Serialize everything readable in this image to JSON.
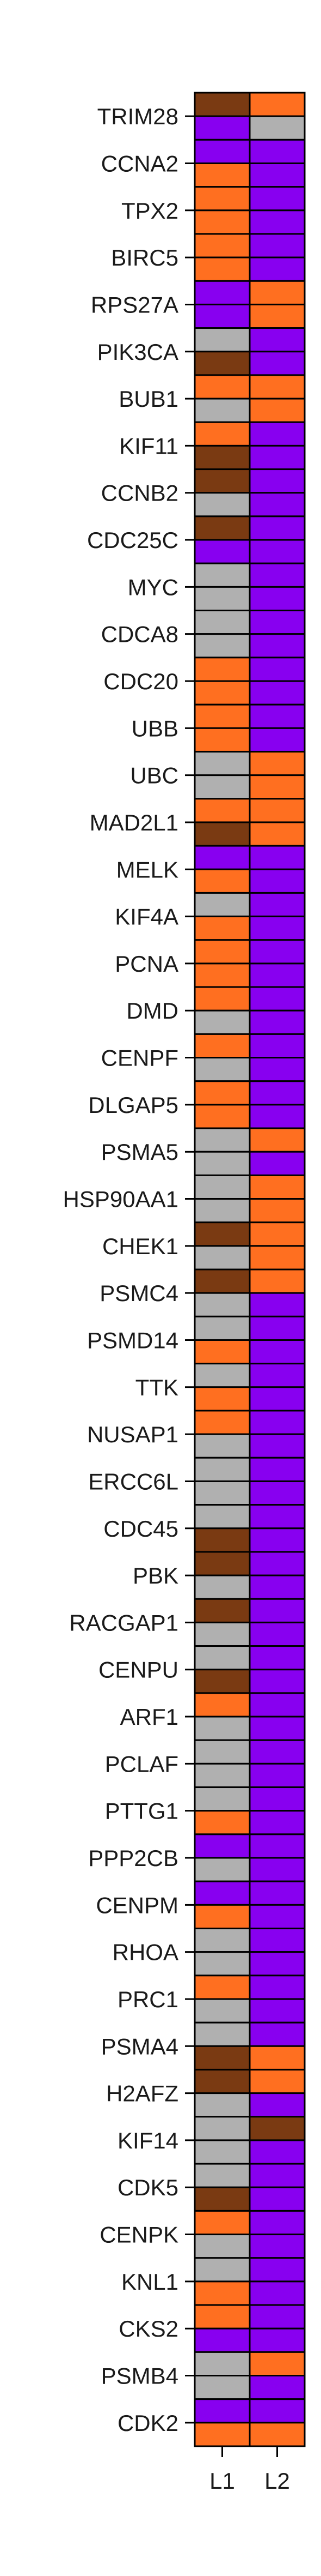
{
  "chart_data": {
    "type": "heatmap",
    "columns": [
      "L1",
      "L2"
    ],
    "rows": [
      "TRIM28",
      "CCNA2",
      "TPX2",
      "BIRC5",
      "RPS27A",
      "PIK3CA",
      "BUB1",
      "KIF11",
      "CCNB2",
      "CDC25C",
      "MYC",
      "CDCA8",
      "CDC20",
      "UBB",
      "UBC",
      "MAD2L1",
      "MELK",
      "KIF4A",
      "PCNA",
      "DMD",
      "CENPF",
      "DLGAP5",
      "PSMA5",
      "HSP90AA1",
      "CHEK1",
      "PSMC4",
      "PSMD14",
      "TTK",
      "NUSAP1",
      "ERCC6L",
      "CDC45",
      "PBK",
      "RACGAP1",
      "CENPU",
      "ARF1",
      "PCLAF",
      "PTTG1",
      "PPP2CB",
      "CENPM",
      "RHOA",
      "PRC1",
      "PSMA4",
      "H2AFZ",
      "KIF14",
      "CDK5",
      "CENPK",
      "KNL1",
      "CKS2",
      "PSMB4",
      "CDK2"
    ],
    "palette": {
      "B": "#7a3a12",
      "O": "#ff6f20",
      "P": "#8800f0",
      "G": "#b0b0b0"
    },
    "grid_rows": 100,
    "col_L1": "BPPOOOOOPPGBOGOBBGBPGGGGOOOOGGOBPOGOOOOGOGOOGGGGBGBGGOGOOGGGGBBGBGGBOGGGGOPGPOGGOGGBBGGGGBOGGOOPGGPOO",
    "col_L2": "OGPPPPPPOOPPOOPPPPPPPPPPPPPPOOOOPPPPPPPPPPPPOPOOOOOPPPPPPPPPPPPPPPPPPPPPPPPPPPPPPPPOOPBPPPPPPPPPOPPOO"
  }
}
